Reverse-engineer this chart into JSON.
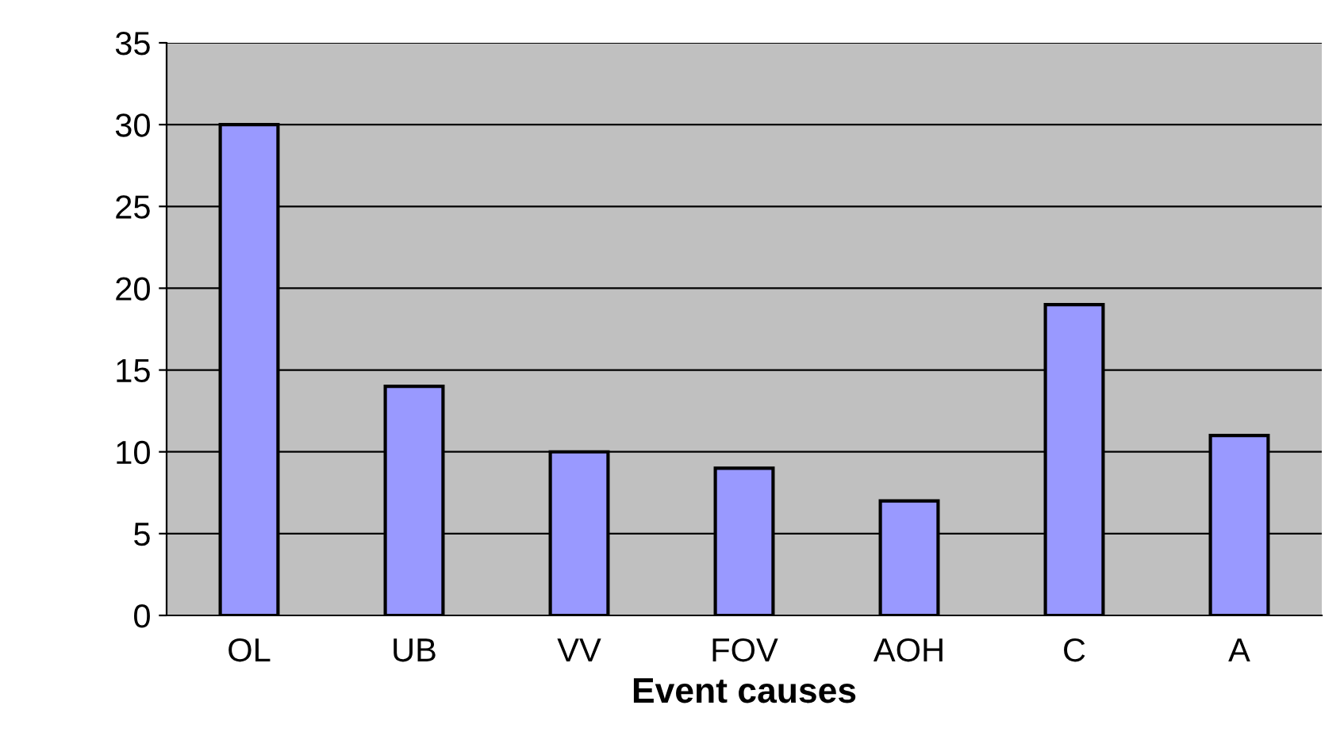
{
  "chart_data": {
    "type": "bar",
    "xlabel": "Event causes",
    "categories": [
      "OL",
      "UB",
      "VV",
      "FOV",
      "AOH",
      "C",
      "A"
    ],
    "values": [
      30,
      14,
      10,
      9,
      7,
      19,
      11
    ],
    "color": "#9999ff",
    "ylim": [
      0,
      35
    ],
    "yticks": [
      0,
      5,
      10,
      15,
      20,
      25,
      30,
      35
    ],
    "grid": "y"
  }
}
